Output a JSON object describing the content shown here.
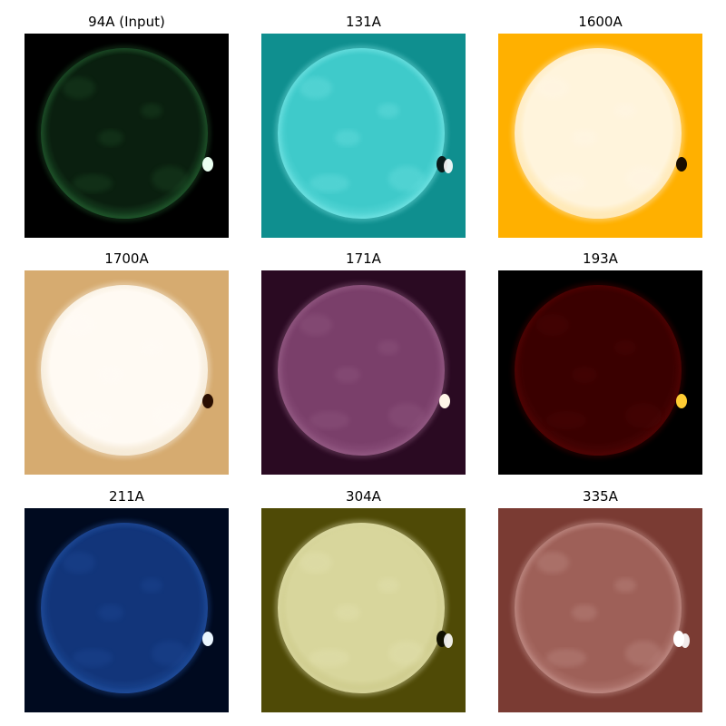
{
  "figure": {
    "panels": [
      {
        "title": "94A (Input)",
        "colormap": "sdoaia94",
        "bg": "#000000",
        "disk": "#0a1f0f",
        "disk_edge": "#1a4a25",
        "limb": "#2a6a35",
        "spot": "#eafff0",
        "spot_kind": "bright"
      },
      {
        "title": "131A",
        "colormap": "sdoaia131",
        "bg": "#0f8f8f",
        "disk": "#3fcaca",
        "disk_edge": "#5ad8d8",
        "limb": "#8ff0f0",
        "spot": "#0a1a1a",
        "spot_kind": "bipolar"
      },
      {
        "title": "1600A",
        "colormap": "sdoaia1600",
        "bg": "#ffb000",
        "disk": "#fff4dc",
        "disk_edge": "#ffe2a0",
        "limb": "#fff8ee",
        "spot": "#1a0e00",
        "spot_kind": "dark"
      },
      {
        "title": "1700A",
        "colormap": "sdoaia1700",
        "bg": "#d6ab70",
        "disk": "#fffaf3",
        "disk_edge": "#f1e2c8",
        "limb": "#fffdf8",
        "spot": "#2a0e00",
        "spot_kind": "dark"
      },
      {
        "title": "171A",
        "colormap": "sdoaia171",
        "bg": "#2a0a22",
        "disk": "#7a3f6a",
        "disk_edge": "#8a4f7a",
        "limb": "#a06a90",
        "spot": "#fff6e8",
        "spot_kind": "bright"
      },
      {
        "title": "193A",
        "colormap": "sdoaia193",
        "bg": "#000000",
        "disk": "#3a0000",
        "disk_edge": "#4a0505",
        "limb": "#5a0a0a",
        "spot": "#ffcc33",
        "spot_kind": "bright"
      },
      {
        "title": "211A",
        "colormap": "sdoaia211",
        "bg": "#000a1f",
        "disk": "#12357a",
        "disk_edge": "#1a4590",
        "limb": "#2555a8",
        "spot": "#eaf6ff",
        "spot_kind": "bright"
      },
      {
        "title": "304A",
        "colormap": "sdoaia304",
        "bg": "#4f4a06",
        "disk": "#d8d69c",
        "disk_edge": "#c9c684",
        "limb": "#ecebc0",
        "spot": "#101000",
        "spot_kind": "bipolar"
      },
      {
        "title": "335A",
        "colormap": "sdoaia335",
        "bg": "#7a3b33",
        "disk": "#9e6058",
        "disk_edge": "#b0766f",
        "limb": "#d6aaa4",
        "spot": "#ffffff",
        "spot_kind": "bipolar"
      }
    ]
  }
}
